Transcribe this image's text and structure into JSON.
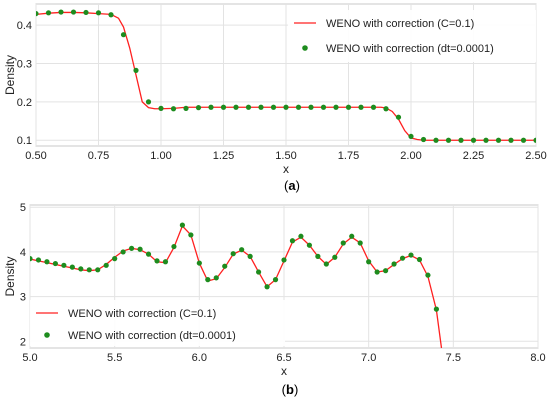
{
  "chart_data": [
    {
      "id": "a",
      "type": "line",
      "caption": "(a)",
      "xlabel": "x",
      "ylabel": "Density",
      "xlim": [
        0.5,
        2.5
      ],
      "ylim": [
        0.085,
        0.455
      ],
      "xticks": [
        "0.50",
        "0.75",
        "1.00",
        "1.25",
        "1.50",
        "1.75",
        "2.00",
        "2.25",
        "2.50"
      ],
      "yticks": [
        "0.1",
        "0.2",
        "0.3",
        "0.4"
      ],
      "grid": true,
      "legend_position": "top-right",
      "series": [
        {
          "name": "WENO with correction (C=0.1)",
          "kind": "line",
          "color": "#ff2020",
          "x": [
            0.5,
            0.55,
            0.6,
            0.65,
            0.7,
            0.75,
            0.8,
            0.83,
            0.85,
            0.875,
            0.9,
            0.925,
            0.95,
            0.975,
            1.0,
            1.05,
            1.1,
            1.15,
            1.2,
            1.5,
            1.8,
            1.88,
            1.9,
            1.925,
            1.95,
            1.975,
            2.0,
            2.025,
            2.05,
            2.1,
            2.5
          ],
          "y": [
            0.428,
            0.431,
            0.433,
            0.433,
            0.432,
            0.43,
            0.428,
            0.418,
            0.395,
            0.34,
            0.27,
            0.2,
            0.185,
            0.182,
            0.182,
            0.183,
            0.186,
            0.186,
            0.186,
            0.186,
            0.186,
            0.186,
            0.184,
            0.175,
            0.155,
            0.125,
            0.106,
            0.102,
            0.1,
            0.1,
            0.1
          ]
        },
        {
          "name": "WENO with correction (dt=0.0001)",
          "kind": "scatter",
          "color": "#1e8c1e",
          "x": [
            0.5,
            0.55,
            0.6,
            0.65,
            0.7,
            0.75,
            0.8,
            0.85,
            0.9,
            0.95,
            1.0,
            1.05,
            1.1,
            1.15,
            1.2,
            1.25,
            1.3,
            1.35,
            1.4,
            1.45,
            1.5,
            1.55,
            1.6,
            1.65,
            1.7,
            1.75,
            1.8,
            1.85,
            1.9,
            1.95,
            2.0,
            2.05,
            2.1,
            2.15,
            2.2,
            2.25,
            2.3,
            2.35,
            2.4,
            2.45,
            2.5
          ],
          "y": [
            0.43,
            0.432,
            0.434,
            0.434,
            0.433,
            0.432,
            0.427,
            0.375,
            0.282,
            0.2,
            0.183,
            0.182,
            0.183,
            0.185,
            0.186,
            0.186,
            0.186,
            0.186,
            0.186,
            0.186,
            0.186,
            0.186,
            0.186,
            0.186,
            0.186,
            0.186,
            0.186,
            0.186,
            0.182,
            0.16,
            0.11,
            0.102,
            0.1,
            0.1,
            0.1,
            0.1,
            0.1,
            0.1,
            0.1,
            0.1,
            0.1
          ]
        }
      ]
    },
    {
      "id": "b",
      "type": "line",
      "caption": "(b)",
      "xlabel": "x",
      "ylabel": "Density",
      "xlim": [
        5.0,
        8.0
      ],
      "ylim": [
        1.85,
        5.05
      ],
      "xticks": [
        "5.0",
        "5.5",
        "6.0",
        "6.5",
        "7.0",
        "7.5",
        "8.0"
      ],
      "yticks": [
        "2",
        "3",
        "4",
        "5"
      ],
      "grid": true,
      "legend_position": "bottom-left",
      "series": [
        {
          "name": "WENO with correction (C=0.1)",
          "kind": "line",
          "color": "#ff2020",
          "x": [
            5.0,
            5.05,
            5.1,
            5.15,
            5.2,
            5.25,
            5.3,
            5.35,
            5.4,
            5.45,
            5.5,
            5.55,
            5.6,
            5.65,
            5.7,
            5.75,
            5.8,
            5.85,
            5.9,
            5.95,
            6.0,
            6.05,
            6.1,
            6.15,
            6.2,
            6.25,
            6.3,
            6.35,
            6.4,
            6.45,
            6.5,
            6.55,
            6.6,
            6.65,
            6.7,
            6.75,
            6.8,
            6.85,
            6.9,
            6.95,
            7.0,
            7.05,
            7.1,
            7.15,
            7.2,
            7.25,
            7.3,
            7.35,
            7.4,
            7.43
          ],
          "y": [
            3.84,
            3.8,
            3.76,
            3.72,
            3.68,
            3.64,
            3.6,
            3.58,
            3.6,
            3.72,
            3.88,
            4.02,
            4.08,
            4.05,
            3.95,
            3.78,
            3.76,
            4.1,
            4.58,
            4.38,
            3.75,
            3.35,
            3.4,
            3.65,
            3.95,
            4.04,
            3.9,
            3.55,
            3.22,
            3.38,
            3.8,
            4.22,
            4.33,
            4.15,
            3.9,
            3.72,
            3.88,
            4.18,
            4.33,
            4.2,
            3.8,
            3.55,
            3.58,
            3.72,
            3.85,
            3.92,
            3.82,
            3.45,
            2.7,
            1.85
          ]
        },
        {
          "name": "WENO with correction (dt=0.0001)",
          "kind": "scatter",
          "color": "#1e8c1e",
          "x": [
            5.0,
            5.05,
            5.1,
            5.15,
            5.2,
            5.25,
            5.3,
            5.35,
            5.4,
            5.45,
            5.5,
            5.55,
            5.6,
            5.65,
            5.7,
            5.75,
            5.8,
            5.85,
            5.9,
            5.95,
            6.0,
            6.05,
            6.1,
            6.15,
            6.2,
            6.25,
            6.3,
            6.35,
            6.4,
            6.45,
            6.5,
            6.55,
            6.6,
            6.65,
            6.7,
            6.75,
            6.8,
            6.85,
            6.9,
            6.95,
            7.0,
            7.05,
            7.1,
            7.15,
            7.2,
            7.25,
            7.3,
            7.35,
            7.4
          ],
          "y": [
            3.85,
            3.82,
            3.78,
            3.74,
            3.7,
            3.66,
            3.62,
            3.6,
            3.6,
            3.7,
            3.85,
            4.0,
            4.08,
            4.06,
            3.95,
            3.8,
            3.78,
            4.12,
            4.6,
            4.38,
            3.75,
            3.38,
            3.42,
            3.68,
            3.96,
            4.05,
            3.9,
            3.55,
            3.22,
            3.38,
            3.82,
            4.25,
            4.35,
            4.15,
            3.9,
            3.73,
            3.88,
            4.2,
            4.35,
            4.2,
            3.78,
            3.55,
            3.58,
            3.73,
            3.86,
            3.93,
            3.83,
            3.48,
            2.72
          ]
        }
      ]
    }
  ]
}
